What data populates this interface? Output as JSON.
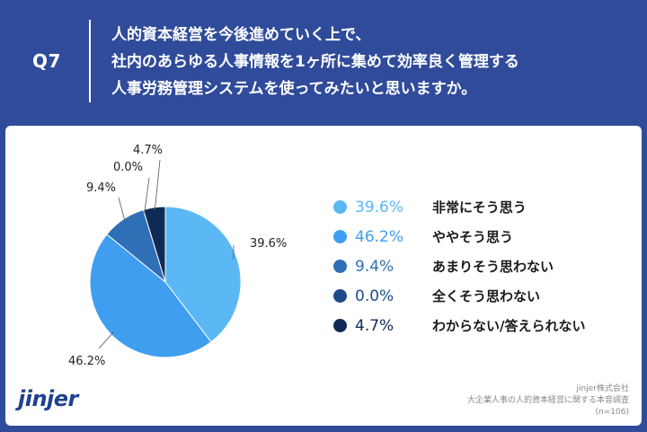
{
  "header": {
    "q_label": "Q7",
    "question_lines": [
      "人的資本経営を今後進めていく上で、",
      "社内のあらゆる人事情報を1ヶ所に集めて効率良く管理する",
      "人事労務管理システムを使ってみたいと思いますか。"
    ]
  },
  "chart_data": {
    "type": "pie",
    "title": "",
    "start": "12 o'clock, clockwise",
    "slices": [
      {
        "label": "非常にそう思う",
        "value": 39.6,
        "value_label": "39.6%",
        "color": "#5bb8f5"
      },
      {
        "label": "ややそう思う",
        "value": 46.2,
        "value_label": "46.2%",
        "color": "#3f9ef0"
      },
      {
        "label": "あまりそう思わない",
        "value": 9.4,
        "value_label": "9.4%",
        "color": "#2f6fb5"
      },
      {
        "label": "全くそう思わない",
        "value": 0.0,
        "value_label": "0.0%",
        "color": "#1e4a8a"
      },
      {
        "label": "わからない/答えられない",
        "value": 4.7,
        "value_label": "4.7%",
        "color": "#0f2a55"
      }
    ],
    "legend_placement": "right"
  },
  "footer": {
    "logo_text": "jinjer",
    "source_lines": [
      "jinjer株式会社",
      "大企業人事の人的資本経営に関する本音調査",
      "(n=106)"
    ]
  }
}
